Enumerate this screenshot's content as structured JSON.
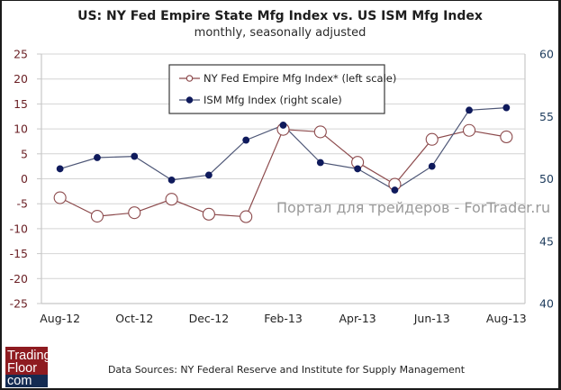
{
  "chart_data": {
    "type": "line",
    "title": "US: NY Fed Empire State Mfg Index vs. US ISM Mfg Index",
    "subtitle": "monthly, seasonally adjusted",
    "categories": [
      "Aug-12",
      "Sep-12",
      "Oct-12",
      "Nov-12",
      "Dec-12",
      "Jan-13",
      "Feb-13",
      "Mar-13",
      "Apr-13",
      "May-13",
      "Jun-13",
      "Jul-13",
      "Aug-13"
    ],
    "x_tick_labels": [
      "Aug-12",
      "Oct-12",
      "Dec-12",
      "Feb-13",
      "Apr-13",
      "Jun-13",
      "Aug-13"
    ],
    "left_axis": {
      "range": [
        -25,
        25
      ],
      "ticks": [
        "25",
        "20",
        "15",
        "10",
        "5",
        "0",
        "-5",
        "-10",
        "-15",
        "-20",
        "-25"
      ],
      "tick_values": [
        25,
        20,
        15,
        10,
        5,
        0,
        -5,
        -10,
        -15,
        -20,
        -25
      ]
    },
    "right_axis": {
      "range": [
        40,
        60
      ],
      "ticks": [
        "60",
        "55",
        "50",
        "45",
        "40"
      ],
      "tick_values": [
        60,
        55,
        50,
        45,
        40
      ]
    },
    "grid": true,
    "legend_position": "top-center",
    "series": [
      {
        "name": "NY Fed Empire Mfg Index* (left scale)",
        "axis": "left",
        "marker": "open-circle",
        "color": "#8c4a4c",
        "values": [
          -3.8,
          -7.5,
          -6.8,
          -4.1,
          -7.1,
          -7.6,
          9.9,
          9.4,
          3.3,
          -1.1,
          7.9,
          9.7,
          8.4
        ]
      },
      {
        "name": "ISM Mfg Index (right scale)",
        "axis": "right",
        "marker": "filled-circle",
        "color": "#0f1a5c",
        "line_color": "#4d5676",
        "values": [
          50.8,
          51.7,
          51.8,
          49.9,
          50.3,
          53.1,
          54.3,
          51.3,
          50.8,
          49.1,
          51.0,
          55.5,
          55.7
        ]
      }
    ]
  },
  "watermark": "Портал для трейдеров - ForTrader.ru",
  "footer": {
    "source": "Data Sources: NY Federal Reserve and Institute for Supply Management",
    "logo": {
      "line1": "Trading",
      "line2": "Floor",
      "line3": "com",
      "red": "#8e1b20",
      "navy": "#142b52"
    }
  }
}
